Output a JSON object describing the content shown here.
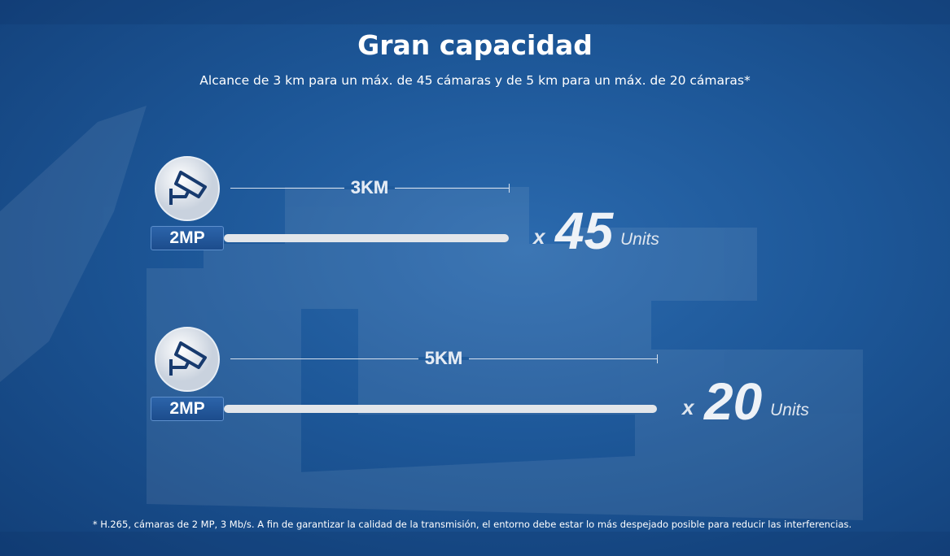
{
  "header": {
    "title": "Gran capacidad",
    "subtitle": "Alcance de 3 km para un máx. de 45 cámaras y de 5 km para un máx. de 20 cámaras*"
  },
  "rows": [
    {
      "resolution": "2MP",
      "distance": "3KM",
      "multiplier": "x",
      "count": "45",
      "unit": "Units"
    },
    {
      "resolution": "2MP",
      "distance": "5KM",
      "multiplier": "x",
      "count": "20",
      "unit": "Units"
    }
  ],
  "footnote": "* H.265, cámaras de 2 MP, 3 Mb/s. A fin de garantizar la calidad de la transmisión, el entorno debe estar lo más despejado posible para reducir las interferencias."
}
